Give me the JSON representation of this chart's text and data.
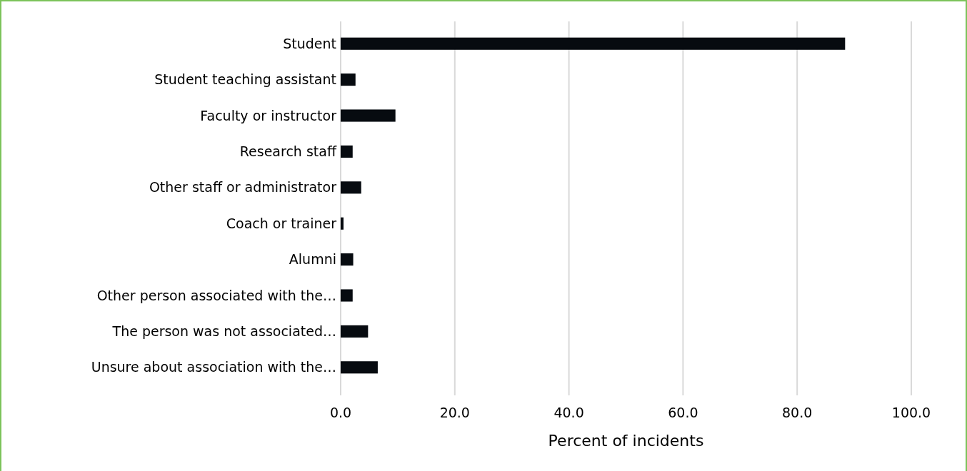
{
  "chart_data": {
    "type": "bar",
    "orientation": "horizontal",
    "xlabel": "Percent of incidents",
    "categories": [
      "Student",
      "Student teaching assistant",
      "Faculty or instructor",
      "Research staff",
      "Other staff or administrator ",
      "Coach or trainer",
      "Alumni",
      "Other person associated with the…",
      "The person was not associated…",
      "Unsure about association with the…"
    ],
    "values": [
      88.4,
      2.6,
      9.6,
      2.1,
      3.6,
      0.5,
      2.2,
      2.1,
      4.8,
      6.5
    ],
    "color": "#070b10",
    "xlim": [
      0,
      100
    ],
    "xticks": [
      {
        "value": 0,
        "label": "0.0"
      },
      {
        "value": 20,
        "label": "20.0"
      },
      {
        "value": 40,
        "label": "40.0"
      },
      {
        "value": 60,
        "label": "60.0"
      },
      {
        "value": 80,
        "label": "80.0"
      },
      {
        "value": 100,
        "label": "100.0"
      }
    ],
    "grid": "x"
  }
}
